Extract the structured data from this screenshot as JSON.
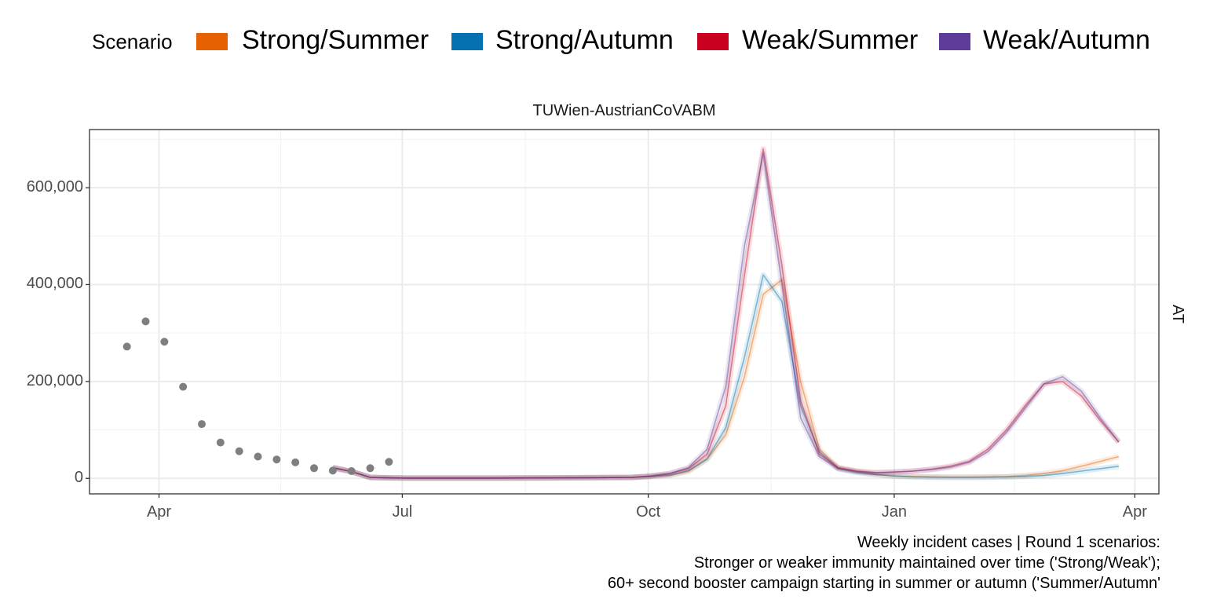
{
  "legend": {
    "title": "Scenario",
    "items": [
      {
        "label": "Strong/Summer",
        "color": "#e66101"
      },
      {
        "label": "Strong/Autumn",
        "color": "#0571b0"
      },
      {
        "label": "Weak/Summer",
        "color": "#ca0020"
      },
      {
        "label": "Weak/Autumn",
        "color": "#5e3c99"
      }
    ]
  },
  "panel": {
    "title": "TUWien-AustrianCoVABM",
    "facet_label": "AT"
  },
  "caption": {
    "lines": [
      "Weekly incident cases | Round 1 scenarios:",
      "Stronger or weaker immunity maintained over time ('Strong/Weak');",
      "60+ second booster campaign starting in summer or autumn ('Summer/Autumn'"
    ]
  },
  "chart_data": {
    "type": "line",
    "title": "TUWien-AustrianCoVABM",
    "xlabel": "",
    "ylabel": "",
    "x_axis": {
      "type": "date",
      "range": [
        "2022-03-06",
        "2023-04-10"
      ],
      "ticks": [
        "2022-04-01",
        "2022-07-01",
        "2022-10-01",
        "2023-01-01",
        "2023-04-01"
      ],
      "tick_labels": [
        "Apr",
        "Jul",
        "Oct",
        "Jan",
        "Apr"
      ]
    },
    "y_axis": {
      "range": [
        -32000,
        720000
      ],
      "ticks": [
        0,
        200000,
        400000,
        600000
      ],
      "tick_labels": [
        "0",
        "200,000",
        "400,000",
        "600,000"
      ]
    },
    "grid": true,
    "legend_placement": "top",
    "observed": {
      "color": "#7f7f7f",
      "x": [
        "2022-03-20",
        "2022-03-27",
        "2022-04-03",
        "2022-04-10",
        "2022-04-17",
        "2022-04-24",
        "2022-05-01",
        "2022-05-08",
        "2022-05-15",
        "2022-05-22",
        "2022-05-29",
        "2022-06-05",
        "2022-06-12",
        "2022-06-19",
        "2022-06-26"
      ],
      "y": [
        272000,
        324000,
        282000,
        189000,
        112000,
        74000,
        56000,
        45000,
        39000,
        33000,
        21000,
        16000,
        15000,
        21000,
        34000
      ]
    },
    "x": [
      "2022-06-05",
      "2022-06-12",
      "2022-06-19",
      "2022-06-26",
      "2022-07-03",
      "2022-07-31",
      "2022-08-28",
      "2022-09-25",
      "2022-10-02",
      "2022-10-09",
      "2022-10-16",
      "2022-10-23",
      "2022-10-30",
      "2022-11-06",
      "2022-11-13",
      "2022-11-20",
      "2022-11-27",
      "2022-12-04",
      "2022-12-11",
      "2022-12-18",
      "2022-12-25",
      "2023-01-01",
      "2023-01-08",
      "2023-01-15",
      "2023-01-22",
      "2023-01-29",
      "2023-02-05",
      "2023-02-12",
      "2023-02-19",
      "2023-02-26",
      "2023-03-05",
      "2023-03-12",
      "2023-03-19",
      "2023-03-26"
    ],
    "series": [
      {
        "name": "Strong/Summer",
        "color": "#e66101",
        "values": [
          22000,
          14000,
          2000,
          1000,
          500,
          500,
          1000,
          2000,
          4000,
          6000,
          14000,
          40000,
          90000,
          210000,
          380000,
          410000,
          200000,
          60000,
          22000,
          14000,
          8000,
          5000,
          4000,
          3000,
          2500,
          2500,
          3000,
          3500,
          6000,
          10000,
          16000,
          25000,
          35000,
          45000
        ]
      },
      {
        "name": "Strong/Autumn",
        "color": "#0571b0",
        "values": [
          22000,
          14000,
          2000,
          1000,
          500,
          500,
          1000,
          2000,
          4000,
          7000,
          16000,
          40000,
          105000,
          250000,
          420000,
          365000,
          150000,
          55000,
          20000,
          12000,
          8000,
          5000,
          3000,
          2500,
          2000,
          2000,
          2500,
          3000,
          4000,
          6000,
          10000,
          15000,
          20000,
          25000
        ]
      },
      {
        "name": "Weak/Summer",
        "color": "#ca0020",
        "values": [
          22000,
          14000,
          2000,
          1000,
          500,
          500,
          1000,
          2000,
          5000,
          10000,
          20000,
          50000,
          150000,
          420000,
          680000,
          440000,
          160000,
          50000,
          22000,
          15000,
          12000,
          13000,
          15000,
          19000,
          25000,
          35000,
          60000,
          100000,
          150000,
          195000,
          200000,
          170000,
          120000,
          75000
        ]
      },
      {
        "name": "Weak/Autumn",
        "color": "#5e3c99",
        "values": [
          22000,
          14000,
          2000,
          1000,
          500,
          500,
          1000,
          2000,
          5000,
          10000,
          22000,
          60000,
          190000,
          480000,
          670000,
          400000,
          125000,
          45000,
          20000,
          14000,
          11000,
          13000,
          15000,
          18000,
          23000,
          33000,
          55000,
          95000,
          145000,
          195000,
          210000,
          180000,
          125000,
          75000
        ]
      }
    ]
  }
}
